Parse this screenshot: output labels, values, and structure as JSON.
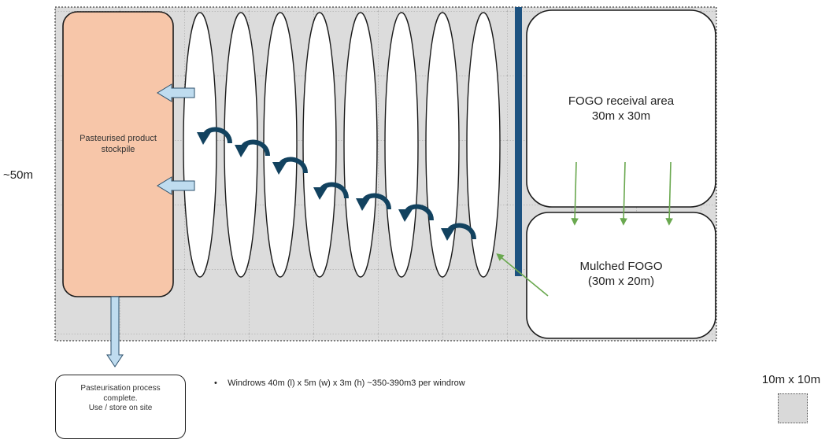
{
  "labels": {
    "stockpile": "Pasteurised product stockpile",
    "fogo_receival_line1": "FOGO receival area",
    "fogo_receival_line2": "30m x 30m",
    "mulched_line1": "Mulched FOGO",
    "mulched_line2": "(30m x 20m)",
    "height": "~50m",
    "complete_line1": "Pasteurisation process",
    "complete_line2": "complete.",
    "complete_line3": "Use / store on site",
    "bullet": "•",
    "windrows_note": "Windrows 40m (l) x 5m (w) x 3m (h) ~350-390m3 per windrow",
    "legend": "10m x 10m"
  },
  "colors": {
    "stockpile_fill": "#f7c6a9",
    "grid_fill": "#dcdcdc",
    "turn_arrow": "#12425f",
    "transfer_arrow": "#bfdcef",
    "divider_bar": "#1d5280",
    "feed_arrow": "#6aa84f"
  },
  "windrow_count": 8,
  "turn_arrow_count": 7,
  "feed_arrow_count": 3,
  "icons": [
    "curved-turn-arrow-icon",
    "transfer-arrow-icon",
    "feed-arrow-icon"
  ]
}
